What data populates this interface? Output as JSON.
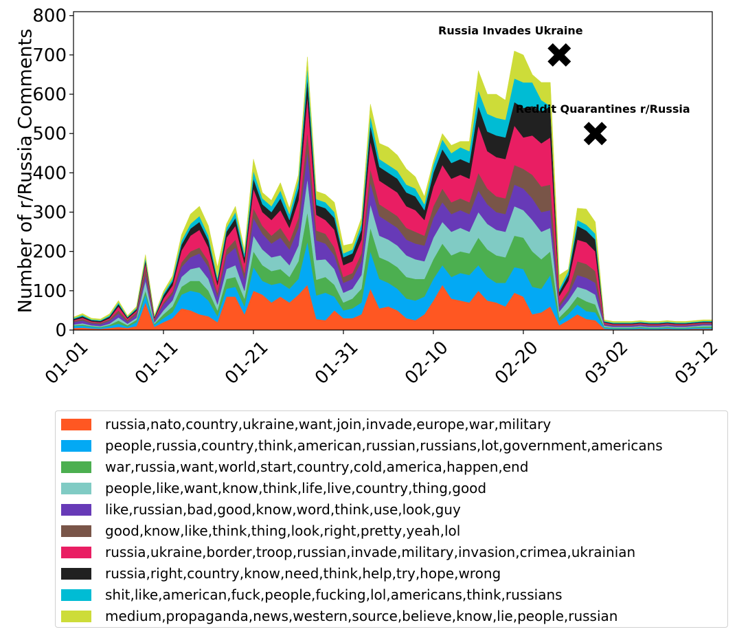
{
  "chart_data": {
    "type": "area",
    "stacked": true,
    "xlabel": "",
    "ylabel": "Number of r/Russia Comments",
    "ylim": [
      0,
      810
    ],
    "yticks": [
      0,
      100,
      200,
      300,
      400,
      500,
      600,
      700,
      800
    ],
    "x_start": "01-01",
    "x_end": "03-13",
    "xticks": [
      "01-01",
      "01-11",
      "01-21",
      "01-31",
      "02-10",
      "02-20",
      "03-02",
      "03-12"
    ],
    "grid": false,
    "legend_position": "bottom",
    "x": [
      "01-01",
      "01-02",
      "01-03",
      "01-04",
      "01-05",
      "01-06",
      "01-07",
      "01-08",
      "01-09",
      "01-10",
      "01-11",
      "01-12",
      "01-13",
      "01-14",
      "01-15",
      "01-16",
      "01-17",
      "01-18",
      "01-19",
      "01-20",
      "01-21",
      "01-22",
      "01-23",
      "01-24",
      "01-25",
      "01-26",
      "01-27",
      "01-28",
      "01-29",
      "01-30",
      "01-31",
      "02-01",
      "02-02",
      "02-03",
      "02-04",
      "02-05",
      "02-06",
      "02-07",
      "02-08",
      "02-09",
      "02-10",
      "02-11",
      "02-12",
      "02-13",
      "02-14",
      "02-15",
      "02-16",
      "02-17",
      "02-18",
      "02-19",
      "02-20",
      "02-21",
      "02-22",
      "02-23",
      "02-24",
      "02-25",
      "02-26",
      "02-27",
      "02-28",
      "03-01",
      "03-02",
      "03-03",
      "03-04",
      "03-05",
      "03-06",
      "03-07",
      "03-08",
      "03-09",
      "03-10",
      "03-11",
      "03-12",
      "03-13"
    ],
    "series": [
      {
        "name": "russia,nato,country,ukraine,want,join,invade,europe,war,military",
        "color": "#ff5722",
        "values": [
          5,
          6,
          4,
          3,
          5,
          8,
          5,
          10,
          70,
          8,
          20,
          30,
          55,
          50,
          40,
          35,
          20,
          85,
          85,
          40,
          100,
          90,
          70,
          85,
          70,
          90,
          115,
          28,
          25,
          50,
          30,
          30,
          40,
          105,
          55,
          60,
          50,
          30,
          25,
          40,
          75,
          115,
          80,
          75,
          70,
          100,
          75,
          70,
          60,
          95,
          85,
          40,
          45,
          60,
          12,
          25,
          40,
          28,
          25,
          3,
          2,
          2,
          2,
          3,
          2,
          2,
          3,
          2,
          2,
          3,
          3,
          3
        ]
      },
      {
        "name": "people,russia,country,think,american,russian,russians,lot,government,americans",
        "color": "#03a9f4",
        "values": [
          5,
          5,
          4,
          3,
          5,
          8,
          3,
          10,
          20,
          5,
          10,
          15,
          35,
          50,
          55,
          40,
          15,
          20,
          25,
          20,
          60,
          35,
          45,
          35,
          35,
          40,
          110,
          60,
          70,
          35,
          20,
          25,
          30,
          95,
          75,
          60,
          55,
          50,
          50,
          45,
          55,
          50,
          55,
          70,
          70,
          65,
          60,
          50,
          60,
          65,
          70,
          70,
          60,
          80,
          10,
          15,
          25,
          20,
          20,
          3,
          2,
          2,
          2,
          3,
          2,
          2,
          3,
          2,
          2,
          3,
          3,
          3
        ]
      },
      {
        "name": "war,russia,want,world,start,country,cold,america,happen,end",
        "color": "#4caf50",
        "values": [
          2,
          3,
          2,
          2,
          3,
          8,
          4,
          6,
          10,
          3,
          10,
          15,
          20,
          25,
          30,
          25,
          15,
          25,
          25,
          20,
          40,
          40,
          35,
          35,
          30,
          45,
          75,
          40,
          40,
          30,
          20,
          25,
          35,
          60,
          55,
          55,
          55,
          55,
          55,
          45,
          50,
          55,
          55,
          55,
          55,
          70,
          70,
          70,
          65,
          80,
          80,
          90,
          75,
          60,
          10,
          15,
          20,
          25,
          20,
          2,
          2,
          2,
          2,
          2,
          2,
          2,
          2,
          2,
          2,
          2,
          3,
          3
        ]
      },
      {
        "name": "people,like,want,know,think,life,live,country,thing,good",
        "color": "#80cbc4",
        "values": [
          2,
          3,
          2,
          2,
          3,
          8,
          4,
          5,
          25,
          3,
          10,
          15,
          25,
          30,
          35,
          30,
          15,
          25,
          30,
          20,
          40,
          40,
          35,
          35,
          30,
          40,
          85,
          50,
          45,
          40,
          25,
          25,
          35,
          60,
          55,
          55,
          55,
          55,
          50,
          45,
          55,
          55,
          60,
          60,
          55,
          65,
          65,
          65,
          65,
          75,
          70,
          80,
          70,
          60,
          15,
          20,
          25,
          30,
          25,
          3,
          2,
          2,
          2,
          2,
          2,
          2,
          2,
          2,
          2,
          2,
          3,
          3
        ]
      },
      {
        "name": "like,russian,bad,good,know,word,think,use,look,guy",
        "color": "#673ab7",
        "values": [
          6,
          7,
          5,
          5,
          7,
          10,
          5,
          8,
          15,
          5,
          15,
          15,
          25,
          30,
          35,
          30,
          20,
          35,
          45,
          30,
          45,
          40,
          35,
          45,
          40,
          45,
          70,
          50,
          40,
          35,
          25,
          25,
          35,
          55,
          50,
          45,
          45,
          40,
          40,
          40,
          50,
          50,
          45,
          45,
          45,
          55,
          50,
          45,
          45,
          55,
          55,
          55,
          50,
          45,
          12,
          15,
          30,
          30,
          30,
          3,
          3,
          3,
          3,
          3,
          3,
          3,
          3,
          3,
          3,
          3,
          3,
          3
        ]
      },
      {
        "name": "good,know,like,think,thing,look,right,pretty,yeah,lol",
        "color": "#795548",
        "values": [
          3,
          4,
          3,
          3,
          4,
          8,
          4,
          6,
          20,
          3,
          5,
          8,
          12,
          15,
          15,
          15,
          10,
          15,
          20,
          15,
          25,
          20,
          20,
          25,
          20,
          25,
          50,
          25,
          25,
          20,
          15,
          15,
          20,
          35,
          30,
          30,
          30,
          30,
          30,
          25,
          30,
          35,
          30,
          30,
          30,
          45,
          40,
          40,
          40,
          50,
          50,
          60,
          65,
          65,
          8,
          10,
          35,
          35,
          30,
          2,
          2,
          2,
          2,
          2,
          2,
          2,
          2,
          2,
          2,
          2,
          2,
          2
        ]
      },
      {
        "name": "russia,ukraine,border,troop,russian,invade,military,invasion,crimea,ukrainian",
        "color": "#e91e63",
        "values": [
          2,
          3,
          2,
          2,
          3,
          10,
          4,
          4,
          10,
          3,
          10,
          15,
          30,
          40,
          45,
          35,
          20,
          30,
          35,
          25,
          50,
          35,
          40,
          45,
          35,
          45,
          90,
          40,
          35,
          45,
          30,
          30,
          35,
          70,
          60,
          60,
          60,
          55,
          55,
          40,
          50,
          60,
          60,
          60,
          60,
          120,
          95,
          100,
          100,
          100,
          80,
          100,
          110,
          120,
          20,
          25,
          55,
          55,
          50,
          3,
          2,
          2,
          2,
          2,
          2,
          2,
          2,
          2,
          2,
          2,
          2,
          2
        ]
      },
      {
        "name": "russia,right,country,know,need,think,help,try,hope,wrong",
        "color": "#212121",
        "values": [
          3,
          4,
          3,
          3,
          4,
          6,
          3,
          4,
          8,
          3,
          8,
          10,
          15,
          18,
          20,
          18,
          10,
          15,
          20,
          15,
          25,
          20,
          20,
          30,
          20,
          30,
          45,
          25,
          30,
          30,
          20,
          20,
          25,
          40,
          35,
          35,
          35,
          35,
          35,
          25,
          35,
          40,
          40,
          40,
          40,
          50,
          50,
          55,
          55,
          60,
          75,
          75,
          80,
          80,
          10,
          15,
          35,
          30,
          30,
          2,
          2,
          2,
          2,
          2,
          2,
          2,
          2,
          2,
          2,
          2,
          2,
          2
        ]
      },
      {
        "name": "shit,like,american,fuck,people,fucking,lol,americans,think,russians",
        "color": "#00bcd4",
        "values": [
          2,
          3,
          2,
          2,
          3,
          4,
          2,
          3,
          6,
          2,
          5,
          7,
          10,
          12,
          15,
          12,
          8,
          10,
          15,
          10,
          20,
          15,
          15,
          20,
          15,
          20,
          30,
          15,
          15,
          15,
          10,
          10,
          15,
          25,
          20,
          20,
          20,
          20,
          20,
          15,
          20,
          25,
          25,
          30,
          30,
          40,
          45,
          45,
          45,
          60,
          65,
          60,
          30,
          0,
          8,
          10,
          15,
          15,
          15,
          2,
          2,
          2,
          2,
          2,
          2,
          2,
          2,
          2,
          2,
          2,
          2,
          2
        ]
      },
      {
        "name": "medium,propaganda,news,western,source,believe,know,lie,people,russian",
        "color": "#cddc39",
        "values": [
          3,
          4,
          3,
          3,
          4,
          5,
          3,
          4,
          8,
          3,
          6,
          8,
          15,
          25,
          25,
          25,
          27,
          10,
          15,
          10,
          30,
          15,
          15,
          20,
          15,
          15,
          25,
          20,
          20,
          25,
          20,
          15,
          15,
          30,
          40,
          45,
          40,
          40,
          30,
          20,
          10,
          15,
          20,
          15,
          25,
          50,
          50,
          60,
          50,
          70,
          70,
          20,
          45,
          60,
          35,
          5,
          30,
          40,
          30,
          3,
          3,
          3,
          3,
          3,
          3,
          3,
          3,
          3,
          3,
          3,
          3,
          3
        ]
      }
    ],
    "annotations": [
      {
        "text": "Russia Invades Ukraine",
        "x": "02-24",
        "y": 700,
        "marker": "X"
      },
      {
        "text": "Reddit Quarantines r/Russia",
        "x": "02-28",
        "y": 500,
        "marker": "X"
      }
    ]
  }
}
